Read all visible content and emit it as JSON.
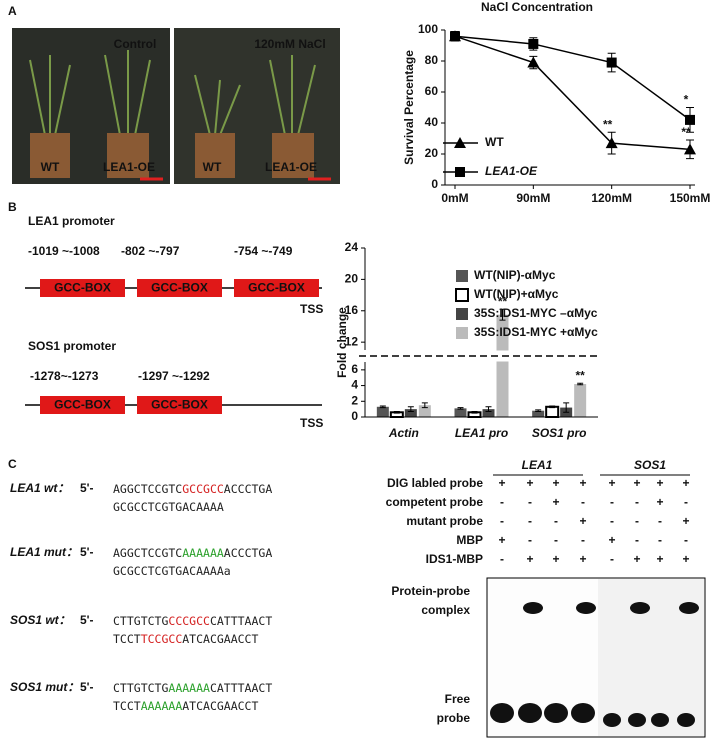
{
  "panels": [
    "A",
    "B",
    "C"
  ],
  "photos": [
    {
      "condition": "Control",
      "labels": [
        "WT",
        "LEA1-OE"
      ]
    },
    {
      "condition": "120mM NaCl",
      "labels": [
        "WT",
        "LEA1-OE"
      ]
    }
  ],
  "chart_data": [
    {
      "type": "line",
      "title": "NaCl Concentration",
      "y_label": "Survival Percentage",
      "categories": [
        "0mM",
        "90mM",
        "120mM",
        "150mM"
      ],
      "ylim": [
        0,
        100
      ],
      "yticks": [
        0,
        20,
        40,
        60,
        80,
        100
      ],
      "legend": "lower left",
      "series": [
        {
          "name": "WT",
          "color": "#000000",
          "marker": "triangle",
          "values": [
            96,
            79,
            27,
            23
          ],
          "errors": [
            3,
            4,
            7,
            6
          ],
          "annotations": [
            null,
            null,
            "**",
            "**"
          ]
        },
        {
          "name": "LEA1-OE",
          "color": "#000000",
          "marker": "square",
          "values": [
            96,
            91,
            79,
            42
          ],
          "errors": [
            3,
            4,
            6,
            8
          ],
          "annotations": [
            null,
            null,
            null,
            "*"
          ]
        }
      ]
    },
    {
      "type": "bar",
      "y_label": "Fold change",
      "categories": [
        "Actin",
        "LEA1 pro",
        "SOS1 pro"
      ],
      "ylim": [
        0,
        24
      ],
      "yticks": [
        0,
        2,
        4,
        6,
        12,
        16,
        20,
        24
      ],
      "axis_break": [
        7,
        11
      ],
      "series": [
        {
          "name": "WT(NIP)-αMyc",
          "color": "#555555",
          "values": [
            1.3,
            1.1,
            0.8
          ],
          "errors": [
            0.1,
            0.1,
            0.1
          ],
          "annotations": [
            null,
            null,
            null
          ]
        },
        {
          "name": "WT(NIP)+αMyc",
          "color": "#ffffff",
          "values": [
            0.6,
            0.6,
            1.3
          ],
          "errors": [
            0.1,
            0.1,
            0.1
          ],
          "annotations": [
            null,
            null,
            null
          ]
        },
        {
          "name": "35S:IDS1-MYC –αMyc",
          "color": "#444444",
          "values": [
            1.0,
            1.0,
            1.2
          ],
          "errors": [
            0.3,
            0.3,
            0.6
          ],
          "annotations": [
            null,
            null,
            null
          ]
        },
        {
          "name": "35S:IDS1-MYC +αMyc",
          "color": "#bbbbbb",
          "values": [
            1.5,
            15.5,
            4.2
          ],
          "errors": [
            0.3,
            0.7,
            0.1
          ],
          "annotations": [
            null,
            "**",
            "**"
          ]
        }
      ]
    }
  ],
  "promoters": [
    {
      "name": "LEA1 promoter",
      "positions": [
        "-1019 ~-1008",
        "-802 ~-797",
        "-754 ~-749"
      ],
      "boxes": [
        "GCC-BOX",
        "GCC-BOX",
        "GCC-BOX"
      ],
      "tss": "TSS"
    },
    {
      "name": "SOS1 promoter",
      "positions": [
        "-1278~-1273",
        "-1297 ~-1292"
      ],
      "boxes": [
        "GCC-BOX",
        "GCC-BOX"
      ],
      "tss": "TSS"
    }
  ],
  "sequences": [
    {
      "label": "LEA1 wt：",
      "prime": "5'-",
      "lines": [
        [
          {
            "text": "AGGCTCCGTC",
            "color": "#222222"
          },
          {
            "text": "GCCGCC",
            "color": "#d42020"
          },
          {
            "text": "ACCCTGA",
            "color": "#222222"
          }
        ],
        [
          {
            "text": "GCGCCTCGTGACAAAA",
            "color": "#222222"
          }
        ]
      ]
    },
    {
      "label": "LEA1 mut：",
      "prime": "5'-",
      "lines": [
        [
          {
            "text": "AGGCTCCGTC",
            "color": "#222222"
          },
          {
            "text": "AAAAAA",
            "color": "#2aa02a"
          },
          {
            "text": "ACCCTGA",
            "color": "#222222"
          }
        ],
        [
          {
            "text": "GCGCCTCGTGACAAAAa",
            "color": "#222222"
          }
        ]
      ]
    },
    {
      "label": "SOS1 wt：",
      "prime": "5'-",
      "lines": [
        [
          {
            "text": "CTTGTCTG",
            "color": "#222222"
          },
          {
            "text": "CCCGCC",
            "color": "#d42020"
          },
          {
            "text": "CATTTAACT",
            "color": "#222222"
          }
        ],
        [
          {
            "text": "TCCT",
            "color": "#222222"
          },
          {
            "text": "TCCGCC",
            "color": "#d42020"
          },
          {
            "text": "ATCACGAACCT",
            "color": "#222222"
          }
        ]
      ]
    },
    {
      "label": "SOS1 mut：",
      "prime": "5'-",
      "lines": [
        [
          {
            "text": "CTTGTCTG",
            "color": "#222222"
          },
          {
            "text": "AAAAAA",
            "color": "#2aa02a"
          },
          {
            "text": "CATTTAACT",
            "color": "#222222"
          }
        ],
        [
          {
            "text": "TCCT",
            "color": "#222222"
          },
          {
            "text": "AAAAAA",
            "color": "#2aa02a"
          },
          {
            "text": "ATCACGAACCT",
            "color": "#222222"
          }
        ]
      ]
    }
  ],
  "emsa": {
    "groups": [
      "LEA1",
      "SOS1"
    ],
    "rows": [
      {
        "label": "DIG labled probe",
        "cells": [
          "+",
          "+",
          "+",
          "+",
          "+",
          "+",
          "+",
          "+"
        ]
      },
      {
        "label": "competent probe",
        "cells": [
          "-",
          "-",
          "+",
          "-",
          "-",
          "-",
          "+",
          "-"
        ]
      },
      {
        "label": "mutant probe",
        "cells": [
          "-",
          "-",
          "-",
          "+",
          "-",
          "-",
          "-",
          "+"
        ]
      },
      {
        "label": "MBP",
        "cells": [
          "+",
          "-",
          "-",
          "-",
          "+",
          "-",
          "-",
          "-"
        ]
      },
      {
        "label": "IDS1-MBP",
        "cells": [
          "-",
          "+",
          "+",
          "+",
          "-",
          "+",
          "+",
          "+"
        ]
      }
    ],
    "complex_label": [
      "Protein-probe",
      "complex"
    ],
    "free_label": [
      "Free",
      "probe"
    ]
  }
}
